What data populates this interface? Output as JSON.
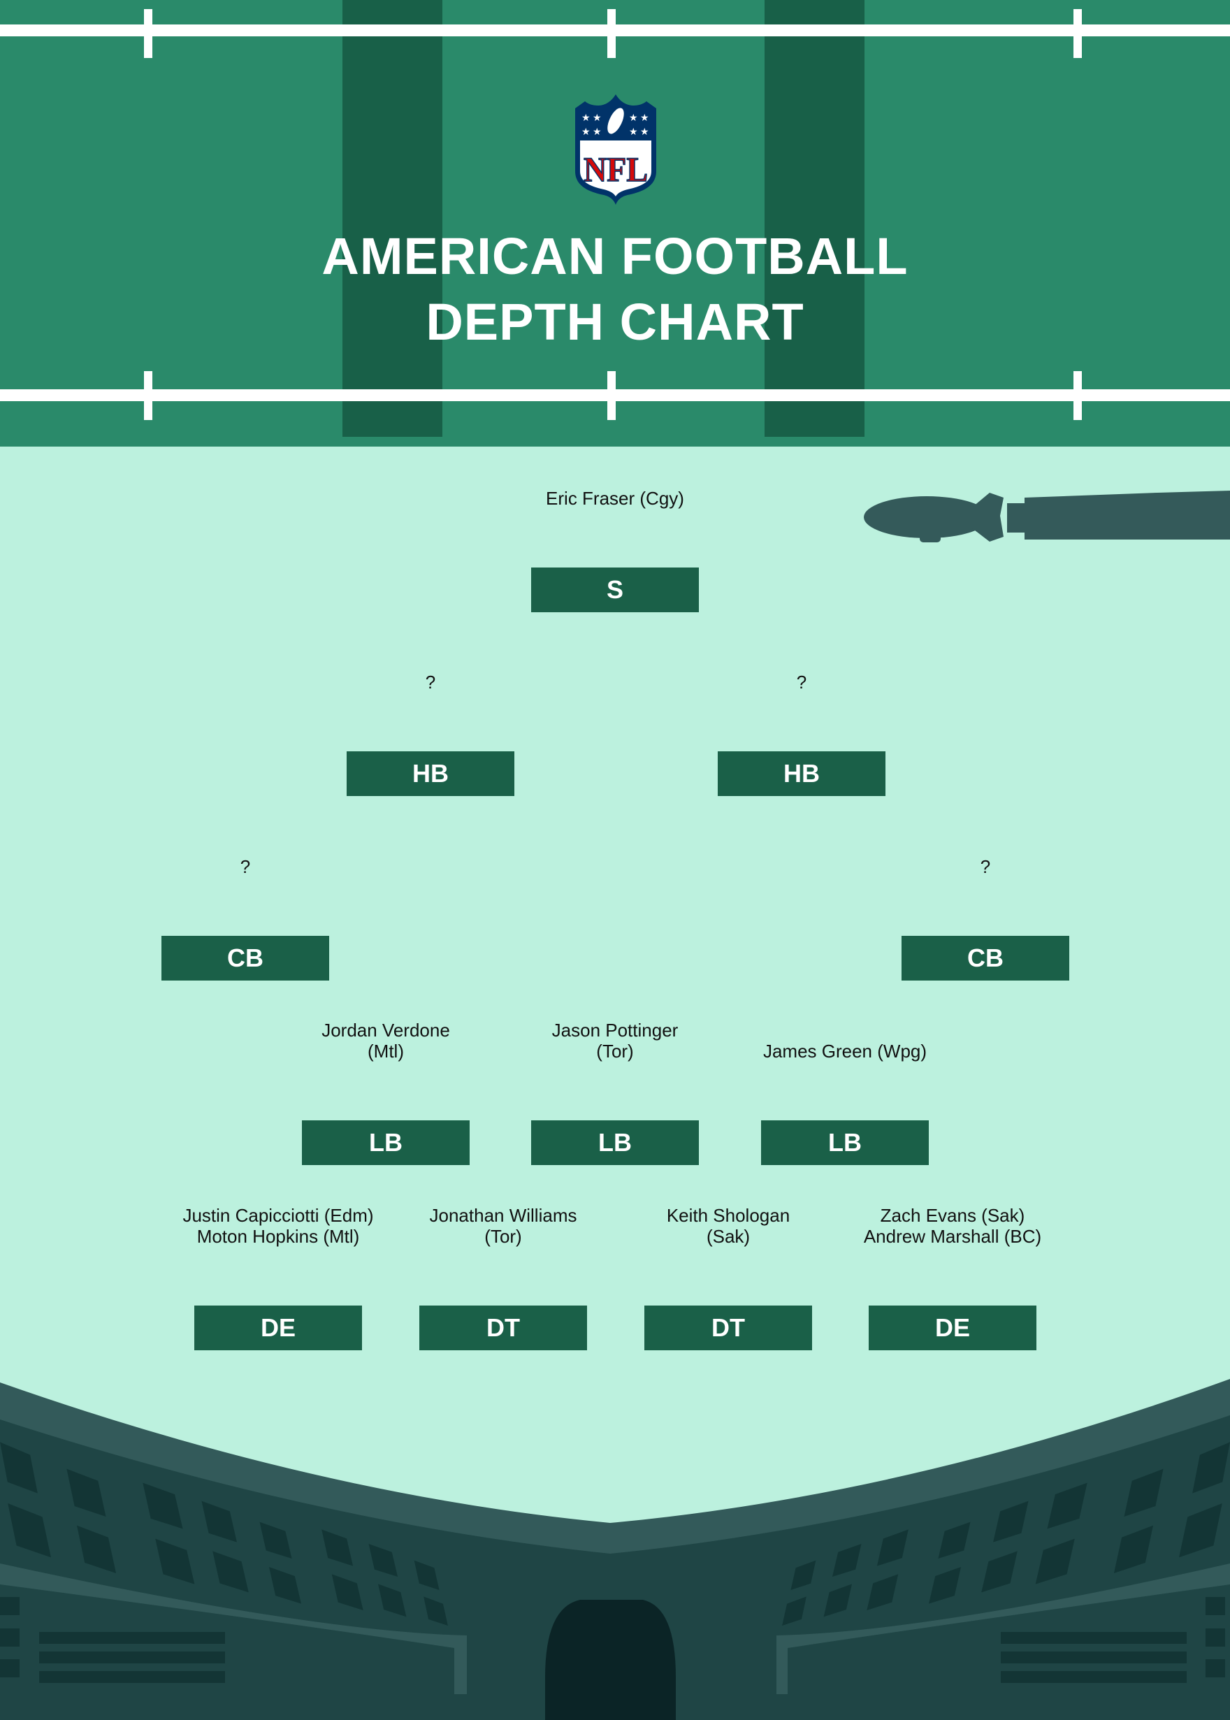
{
  "header": {
    "logo_text": "NFL",
    "title_line1": "AMERICAN FOOTBALL",
    "title_line2": "DEPTH CHART"
  },
  "colors": {
    "field": "#2a8a6a",
    "stripe": "#186048",
    "background": "#bcf1de",
    "position_box": "#1a6048",
    "stadium": "#1f4545",
    "logo_blue": "#013369",
    "logo_red": "#d50a0a"
  },
  "positions": [
    {
      "label": "S",
      "players": [
        "Eric Fraser (Cgy)"
      ]
    },
    {
      "label": "HB",
      "players": [
        "?"
      ]
    },
    {
      "label": "HB",
      "players": [
        "?"
      ]
    },
    {
      "label": "CB",
      "players": [
        "?"
      ]
    },
    {
      "label": "CB",
      "players": [
        "?"
      ]
    },
    {
      "label": "LB",
      "players": [
        "Jordan Verdone",
        "(Mtl)"
      ]
    },
    {
      "label": "LB",
      "players": [
        "Jason Pottinger",
        "(Tor)"
      ]
    },
    {
      "label": "LB",
      "players": [
        "James Green (Wpg)"
      ]
    },
    {
      "label": "DE",
      "players": [
        "Justin Capicciotti (Edm)",
        "Moton Hopkins (Mtl)"
      ]
    },
    {
      "label": "DT",
      "players": [
        "Jonathan Williams",
        "(Tor)"
      ]
    },
    {
      "label": "DT",
      "players": [
        "Keith Shologan",
        "(Sak)"
      ]
    },
    {
      "label": "DE",
      "players": [
        "Zach Evans (Sak)",
        "Andrew Marshall (BC)"
      ]
    }
  ]
}
